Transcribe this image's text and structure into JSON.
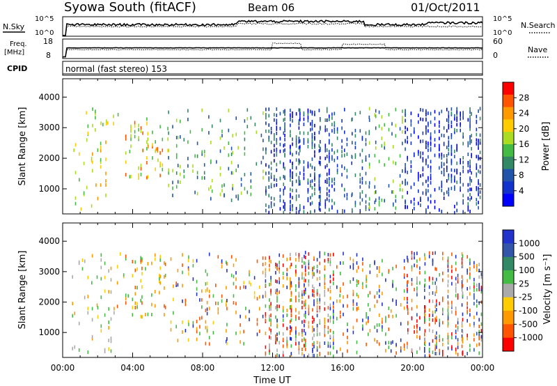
{
  "header": {
    "station": "Syowa South (fitACF)",
    "beam": "Beam 06",
    "date": "01/Oct/2011"
  },
  "panels": {
    "nsky": {
      "left_label": "N.Sky",
      "right_label": "N.Search",
      "left_ticks": [
        "10^5",
        "10^0"
      ],
      "right_ticks": [
        "10^5",
        "10^0"
      ]
    },
    "freq": {
      "left_label": "Freq.",
      "left_unit": "[MHz]",
      "right_label": "Nave",
      "left_ticks": [
        "18",
        "8"
      ],
      "right_ticks": [
        "60",
        "0"
      ]
    },
    "cpid": {
      "label": "CPID",
      "text": "normal (fast stereo) 153"
    }
  },
  "colorbars": {
    "power": {
      "title": "Power [dB]",
      "ticks": [
        "28",
        "24",
        "20",
        "16",
        "12",
        "8",
        "4"
      ],
      "colors": [
        "#ff0000",
        "#ff5500",
        "#ff9900",
        "#ffcc00",
        "#aadd22",
        "#44bb44",
        "#338866",
        "#2255aa",
        "#1133cc",
        "#0000ff"
      ]
    },
    "velocity": {
      "title": "Velocity [m s⁻¹]",
      "ticks": [
        "1000",
        "500",
        "100",
        "25",
        "-25",
        "-100",
        "-500",
        "-1000"
      ],
      "colors": [
        "#2233cc",
        "#3355aa",
        "#338866",
        "#44bb44",
        "#aaaaaa",
        "#ffcc00",
        "#ff9900",
        "#ff5500",
        "#ff0000"
      ]
    }
  },
  "chart_data": [
    {
      "type": "heatmap",
      "name": "power",
      "xlabel": "",
      "ylabel": "Slant Range [km]",
      "x_ticks": [
        "00:00",
        "04:00",
        "08:00",
        "12:00",
        "16:00",
        "20:00",
        "00:00"
      ],
      "y_ticks": [
        1000,
        2000,
        3000,
        4000
      ],
      "xlim": [
        0,
        24
      ],
      "ylim": [
        180,
        4600
      ],
      "units": "hours UT / km",
      "clusters": [
        {
          "t": [
            0.3,
            2.5
          ],
          "r": [
            300,
            2600
          ],
          "colors": [
            "#44bb44",
            "#aadd22",
            "#ffcc00",
            "#ff9900"
          ],
          "density": 0.2
        },
        {
          "t": [
            1.0,
            3.5
          ],
          "r": [
            2700,
            3600
          ],
          "colors": [
            "#44bb44",
            "#aadd22",
            "#ffcc00"
          ],
          "density": 0.25
        },
        {
          "t": [
            3.5,
            6.0
          ],
          "r": [
            1300,
            3400
          ],
          "colors": [
            "#44bb44",
            "#aadd22",
            "#ffcc00",
            "#ff5500"
          ],
          "density": 0.3
        },
        {
          "t": [
            4.5,
            5.5
          ],
          "r": [
            2200,
            2400
          ],
          "colors": [
            "#ff0000",
            "#ff5500",
            "#ff9900"
          ],
          "density": 0.6
        },
        {
          "t": [
            6.0,
            11.5
          ],
          "r": [
            600,
            3600
          ],
          "colors": [
            "#44bb44",
            "#aadd22",
            "#338866",
            "#2255aa"
          ],
          "density": 0.2
        },
        {
          "t": [
            11.5,
            15.5
          ],
          "r": [
            200,
            3600
          ],
          "colors": [
            "#1133cc",
            "#2255aa",
            "#0000ff",
            "#338866"
          ],
          "density": 0.75
        },
        {
          "t": [
            15.5,
            17.5
          ],
          "r": [
            200,
            3600
          ],
          "colors": [
            "#1133cc",
            "#2255aa",
            "#338866"
          ],
          "density": 0.4
        },
        {
          "t": [
            17.5,
            19.5
          ],
          "r": [
            300,
            3600
          ],
          "colors": [
            "#44bb44",
            "#aadd22",
            "#2255aa"
          ],
          "density": 0.25
        },
        {
          "t": [
            19.5,
            22.0
          ],
          "r": [
            200,
            3600
          ],
          "colors": [
            "#1133cc",
            "#2255aa",
            "#0000ff"
          ],
          "density": 0.55
        },
        {
          "t": [
            22.0,
            24.0
          ],
          "r": [
            200,
            3600
          ],
          "colors": [
            "#1133cc",
            "#2255aa",
            "#0000ff",
            "#338866"
          ],
          "density": 0.65
        }
      ]
    },
    {
      "type": "heatmap",
      "name": "velocity",
      "xlabel": "Time UT",
      "ylabel": "Slant Range [km]",
      "x_ticks": [
        "00:00",
        "04:00",
        "08:00",
        "12:00",
        "16:00",
        "20:00",
        "00:00"
      ],
      "y_ticks": [
        1000,
        2000,
        3000,
        4000
      ],
      "xlim": [
        0,
        24
      ],
      "ylim": [
        180,
        4600
      ],
      "units": "hours UT / km",
      "clusters": [
        {
          "t": [
            0.3,
            3.0
          ],
          "r": [
            300,
            3600
          ],
          "colors": [
            "#ffcc00",
            "#ff9900",
            "#aaaaaa",
            "#44bb44"
          ],
          "density": 0.2
        },
        {
          "t": [
            3.0,
            6.0
          ],
          "r": [
            1500,
            3600
          ],
          "colors": [
            "#ff9900",
            "#ffcc00",
            "#ff5500",
            "#44bb44"
          ],
          "density": 0.3
        },
        {
          "t": [
            6.0,
            11.5
          ],
          "r": [
            600,
            3600
          ],
          "colors": [
            "#ff9900",
            "#ff5500",
            "#ffcc00",
            "#44bb44",
            "#2233cc"
          ],
          "density": 0.25
        },
        {
          "t": [
            11.5,
            15.5
          ],
          "r": [
            200,
            3600
          ],
          "colors": [
            "#ff5500",
            "#ff9900",
            "#ff0000",
            "#2233cc",
            "#aaaaaa",
            "#44bb44"
          ],
          "density": 0.75
        },
        {
          "t": [
            15.5,
            19.5
          ],
          "r": [
            300,
            3600
          ],
          "colors": [
            "#ff9900",
            "#ff5500",
            "#2233cc",
            "#44bb44"
          ],
          "density": 0.35
        },
        {
          "t": [
            19.5,
            24.0
          ],
          "r": [
            200,
            3600
          ],
          "colors": [
            "#ff5500",
            "#ff0000",
            "#ff9900",
            "#2233cc",
            "#3355aa",
            "#44bb44",
            "#aaaaaa"
          ],
          "density": 0.65
        }
      ]
    }
  ]
}
